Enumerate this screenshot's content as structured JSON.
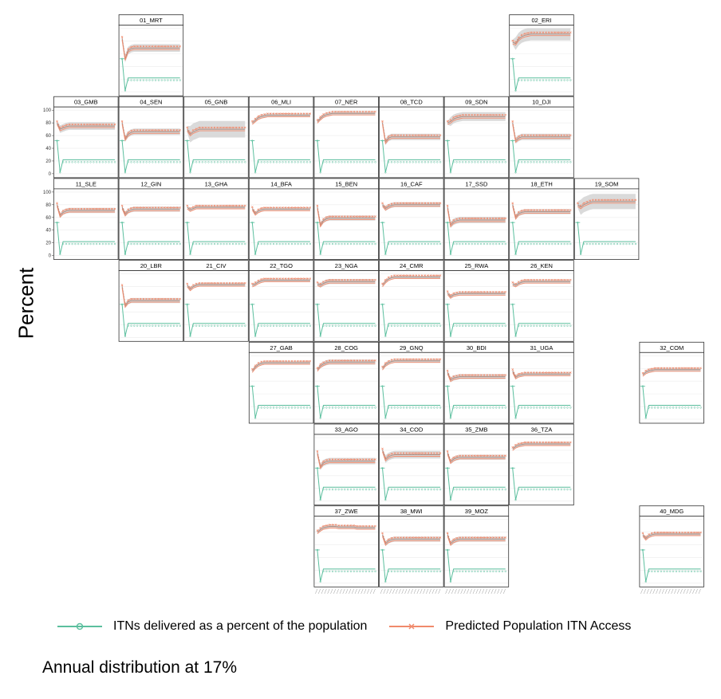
{
  "chart_data": {
    "type": "line",
    "y_axis_label": "Percent",
    "y_ticks": [
      0,
      20,
      40,
      60,
      80,
      100
    ],
    "ylim": [
      0,
      100
    ],
    "caption": "Annual distribution at 17%",
    "legend": [
      {
        "label": "ITNs delivered as a percent of the population",
        "color": "#5bbf9e",
        "marker": "circle"
      },
      {
        "label": "Predicted Population ITN Access",
        "color": "#f08a6c",
        "marker": "x"
      }
    ],
    "colors": {
      "itn": "#5bbf9e",
      "access": "#f08a6c",
      "band": "#d4d4d4",
      "mean": "#a88a80"
    },
    "x_points": 20,
    "series_itn_delivered": [
      52,
      2,
      22,
      22,
      22,
      22,
      22,
      22,
      22,
      22,
      22,
      22,
      22,
      22,
      22,
      22,
      22,
      22,
      22,
      22
    ],
    "countries": [
      {
        "label": "01_MRT",
        "row": 0,
        "col": 1,
        "access": [
          84,
          52,
          65,
          68,
          69,
          69,
          69,
          69,
          69,
          69,
          69,
          69,
          69,
          69,
          69,
          69,
          69,
          69,
          69,
          69
        ],
        "band": 6
      },
      {
        "label": "02_ERI",
        "row": 0,
        "col": 7,
        "access": [
          78,
          76,
          83,
          87,
          89,
          90,
          91,
          91,
          91,
          91,
          91,
          91,
          91,
          91,
          91,
          91,
          91,
          91,
          91,
          91
        ],
        "band": 10
      },
      {
        "label": "03_GMB",
        "row": 1,
        "col": 0,
        "access": [
          80,
          70,
          72,
          74,
          75,
          75,
          75,
          75,
          75,
          75,
          75,
          75,
          75,
          75,
          75,
          75,
          75,
          75,
          75,
          75
        ],
        "band": 6
      },
      {
        "label": "04_SEN",
        "row": 1,
        "col": 1,
        "access": [
          80,
          55,
          62,
          65,
          66,
          66,
          66,
          66,
          66,
          66,
          66,
          66,
          66,
          66,
          66,
          66,
          66,
          66,
          66,
          66
        ],
        "band": 5
      },
      {
        "label": "05_GNB",
        "row": 1,
        "col": 2,
        "access": [
          70,
          62,
          66,
          68,
          70,
          70,
          70,
          70,
          70,
          70,
          70,
          70,
          70,
          70,
          70,
          70,
          70,
          70,
          70,
          70
        ],
        "band": 13
      },
      {
        "label": "06_MLI",
        "row": 1,
        "col": 3,
        "access": [
          80,
          84,
          88,
          90,
          91,
          92,
          92,
          92,
          92,
          92,
          92,
          92,
          92,
          92,
          92,
          92,
          92,
          92,
          92,
          92
        ],
        "band": 3
      },
      {
        "label": "07_NER",
        "row": 1,
        "col": 4,
        "access": [
          82,
          87,
          91,
          93,
          94,
          95,
          95,
          95,
          95,
          95,
          95,
          95,
          95,
          95,
          95,
          95,
          95,
          95,
          95,
          95
        ],
        "band": 3
      },
      {
        "label": "08_TCD",
        "row": 1,
        "col": 5,
        "access": [
          80,
          50,
          56,
          58,
          58,
          58,
          58,
          58,
          58,
          58,
          58,
          58,
          58,
          58,
          58,
          58,
          58,
          58,
          58,
          58
        ],
        "band": 5
      },
      {
        "label": "09_SDN",
        "row": 1,
        "col": 6,
        "access": [
          80,
          82,
          86,
          88,
          89,
          90,
          90,
          90,
          90,
          90,
          90,
          90,
          90,
          90,
          90,
          90,
          90,
          90,
          90,
          90
        ],
        "band": 7
      },
      {
        "label": "10_DJI",
        "row": 1,
        "col": 7,
        "access": [
          80,
          52,
          56,
          58,
          58,
          58,
          58,
          58,
          58,
          58,
          58,
          58,
          58,
          58,
          58,
          58,
          58,
          58,
          58,
          58
        ],
        "band": 5
      },
      {
        "label": "11_SLE",
        "row": 2,
        "col": 0,
        "access": [
          80,
          63,
          68,
          70,
          71,
          71,
          71,
          71,
          71,
          71,
          71,
          71,
          71,
          71,
          71,
          71,
          71,
          71,
          71,
          71
        ],
        "band": 4
      },
      {
        "label": "12_GIN",
        "row": 2,
        "col": 1,
        "access": [
          76,
          65,
          70,
          72,
          73,
          73,
          73,
          73,
          73,
          73,
          73,
          73,
          73,
          73,
          73,
          73,
          73,
          73,
          73,
          73
        ],
        "band": 4
      },
      {
        "label": "13_GHA",
        "row": 2,
        "col": 2,
        "access": [
          76,
          72,
          74,
          76,
          76,
          76,
          76,
          76,
          76,
          76,
          76,
          76,
          76,
          76,
          76,
          76,
          76,
          76,
          76,
          76
        ],
        "band": 3
      },
      {
        "label": "14_BFA",
        "row": 2,
        "col": 3,
        "access": [
          74,
          66,
          70,
          72,
          73,
          73,
          73,
          73,
          73,
          73,
          73,
          73,
          73,
          73,
          73,
          73,
          73,
          73,
          73,
          73
        ],
        "band": 3
      },
      {
        "label": "15_BEN",
        "row": 2,
        "col": 4,
        "access": [
          76,
          48,
          55,
          58,
          59,
          59,
          59,
          59,
          59,
          59,
          59,
          59,
          59,
          59,
          59,
          59,
          59,
          59,
          59,
          59
        ],
        "band": 4
      },
      {
        "label": "16_CAF",
        "row": 2,
        "col": 5,
        "access": [
          80,
          74,
          77,
          79,
          80,
          80,
          80,
          80,
          80,
          80,
          80,
          80,
          80,
          80,
          80,
          80,
          80,
          80,
          80,
          80
        ],
        "band": 4
      },
      {
        "label": "17_SSD",
        "row": 2,
        "col": 6,
        "access": [
          76,
          48,
          53,
          55,
          56,
          56,
          56,
          56,
          56,
          56,
          56,
          56,
          56,
          56,
          56,
          56,
          56,
          56,
          56,
          56
        ],
        "band": 5
      },
      {
        "label": "18_ETH",
        "row": 2,
        "col": 7,
        "access": [
          80,
          60,
          66,
          68,
          69,
          69,
          69,
          69,
          69,
          69,
          69,
          69,
          69,
          69,
          69,
          69,
          69,
          69,
          69,
          69
        ],
        "band": 4
      },
      {
        "label": "19_SOM",
        "row": 2,
        "col": 8,
        "access": [
          80,
          76,
          80,
          82,
          84,
          85,
          85,
          85,
          85,
          85,
          85,
          85,
          85,
          85,
          85,
          85,
          85,
          85,
          85,
          85
        ],
        "band": 12
      },
      {
        "label": "20_LBR",
        "row": 3,
        "col": 1,
        "access": [
          80,
          50,
          56,
          58,
          58,
          58,
          58,
          58,
          58,
          58,
          58,
          58,
          58,
          58,
          58,
          58,
          58,
          58,
          58,
          58
        ],
        "band": 4
      },
      {
        "label": "21_CIV",
        "row": 3,
        "col": 2,
        "access": [
          82,
          76,
          80,
          82,
          83,
          83,
          83,
          83,
          83,
          83,
          83,
          83,
          83,
          83,
          83,
          83,
          83,
          83,
          83,
          83
        ],
        "band": 3
      },
      {
        "label": "22_TGO",
        "row": 3,
        "col": 3,
        "access": [
          82,
          84,
          87,
          89,
          90,
          90,
          90,
          90,
          90,
          90,
          90,
          90,
          90,
          90,
          90,
          90,
          90,
          90,
          90,
          90
        ],
        "band": 3
      },
      {
        "label": "23_NGA",
        "row": 3,
        "col": 4,
        "access": [
          84,
          82,
          85,
          87,
          88,
          88,
          88,
          88,
          88,
          88,
          88,
          88,
          88,
          88,
          88,
          88,
          88,
          88,
          88,
          88
        ],
        "band": 4
      },
      {
        "label": "24_CMR",
        "row": 3,
        "col": 5,
        "access": [
          82,
          88,
          92,
          94,
          95,
          95,
          95,
          95,
          95,
          95,
          95,
          95,
          95,
          95,
          95,
          95,
          95,
          95,
          95,
          95
        ],
        "band": 2
      },
      {
        "label": "25_RWA",
        "row": 3,
        "col": 6,
        "access": [
          70,
          64,
          67,
          68,
          69,
          69,
          69,
          69,
          69,
          69,
          69,
          69,
          69,
          69,
          69,
          69,
          69,
          69,
          69,
          69
        ],
        "band": 3
      },
      {
        "label": "26_KEN",
        "row": 3,
        "col": 7,
        "access": [
          84,
          82,
          85,
          87,
          88,
          88,
          88,
          88,
          88,
          88,
          88,
          88,
          88,
          88,
          88,
          88,
          88,
          88,
          88,
          88
        ],
        "band": 3
      },
      {
        "label": "27_GAB",
        "row": 4,
        "col": 3,
        "access": [
          76,
          82,
          86,
          88,
          89,
          89,
          89,
          89,
          89,
          89,
          89,
          89,
          89,
          89,
          89,
          89,
          89,
          89,
          89,
          89
        ],
        "band": 3
      },
      {
        "label": "28_COG",
        "row": 4,
        "col": 4,
        "access": [
          78,
          84,
          87,
          89,
          90,
          90,
          90,
          90,
          90,
          90,
          90,
          90,
          90,
          90,
          90,
          90,
          90,
          90,
          90,
          90
        ],
        "band": 4
      },
      {
        "label": "29_GNQ",
        "row": 4,
        "col": 5,
        "access": [
          80,
          86,
          89,
          91,
          92,
          92,
          92,
          92,
          92,
          92,
          92,
          92,
          92,
          92,
          92,
          92,
          92,
          92,
          92,
          92
        ],
        "band": 3
      },
      {
        "label": "30_BDI",
        "row": 4,
        "col": 6,
        "access": [
          74,
          62,
          65,
          66,
          67,
          67,
          67,
          67,
          67,
          67,
          67,
          67,
          67,
          67,
          67,
          67,
          67,
          67,
          67,
          67
        ],
        "band": 4
      },
      {
        "label": "31_UGA",
        "row": 4,
        "col": 7,
        "access": [
          76,
          66,
          69,
          70,
          71,
          71,
          71,
          71,
          71,
          71,
          71,
          71,
          71,
          71,
          71,
          71,
          71,
          71,
          71,
          71
        ],
        "band": 3
      },
      {
        "label": "32_COM",
        "row": 4,
        "col": 9,
        "access": [
          70,
          74,
          76,
          77,
          78,
          78,
          78,
          78,
          78,
          78,
          78,
          78,
          78,
          78,
          78,
          78,
          78,
          78,
          78,
          78
        ],
        "band": 3
      },
      {
        "label": "33_AGO",
        "row": 5,
        "col": 4,
        "access": [
          76,
          54,
          60,
          62,
          63,
          63,
          63,
          63,
          63,
          63,
          63,
          63,
          63,
          63,
          63,
          63,
          63,
          63,
          63,
          63
        ],
        "band": 5
      },
      {
        "label": "34_COD",
        "row": 5,
        "col": 5,
        "access": [
          80,
          66,
          70,
          72,
          73,
          73,
          73,
          73,
          73,
          73,
          73,
          73,
          73,
          73,
          73,
          73,
          73,
          73,
          73,
          73
        ],
        "band": 6
      },
      {
        "label": "35_ZMB",
        "row": 5,
        "col": 6,
        "access": [
          76,
          62,
          66,
          68,
          69,
          69,
          69,
          69,
          69,
          69,
          69,
          69,
          69,
          69,
          69,
          69,
          69,
          69,
          69,
          69
        ],
        "band": 4
      },
      {
        "label": "36_TZA",
        "row": 5,
        "col": 7,
        "access": [
          82,
          86,
          88,
          89,
          90,
          90,
          90,
          90,
          90,
          90,
          90,
          90,
          90,
          90,
          90,
          90,
          90,
          90,
          90,
          90
        ],
        "band": 3
      },
      {
        "label": "37_ZWE",
        "row": 6,
        "col": 4,
        "access": [
          80,
          84,
          87,
          88,
          89,
          89,
          89,
          88,
          88,
          88,
          88,
          88,
          88,
          87,
          87,
          87,
          87,
          87,
          87,
          87
        ],
        "band": 3
      },
      {
        "label": "38_MWI",
        "row": 6,
        "col": 5,
        "access": [
          76,
          62,
          66,
          68,
          69,
          69,
          69,
          69,
          69,
          69,
          69,
          69,
          69,
          69,
          69,
          69,
          69,
          69,
          69,
          69
        ],
        "band": 4
      },
      {
        "label": "39_MOZ",
        "row": 6,
        "col": 6,
        "access": [
          76,
          62,
          66,
          68,
          69,
          69,
          69,
          69,
          69,
          69,
          69,
          69,
          69,
          69,
          69,
          69,
          69,
          69,
          69,
          69
        ],
        "band": 4
      },
      {
        "label": "40_MDG",
        "row": 6,
        "col": 9,
        "access": [
          76,
          70,
          74,
          76,
          77,
          77,
          77,
          77,
          77,
          77,
          77,
          77,
          77,
          77,
          77,
          77,
          77,
          77,
          77,
          77
        ],
        "band": 3
      }
    ]
  }
}
